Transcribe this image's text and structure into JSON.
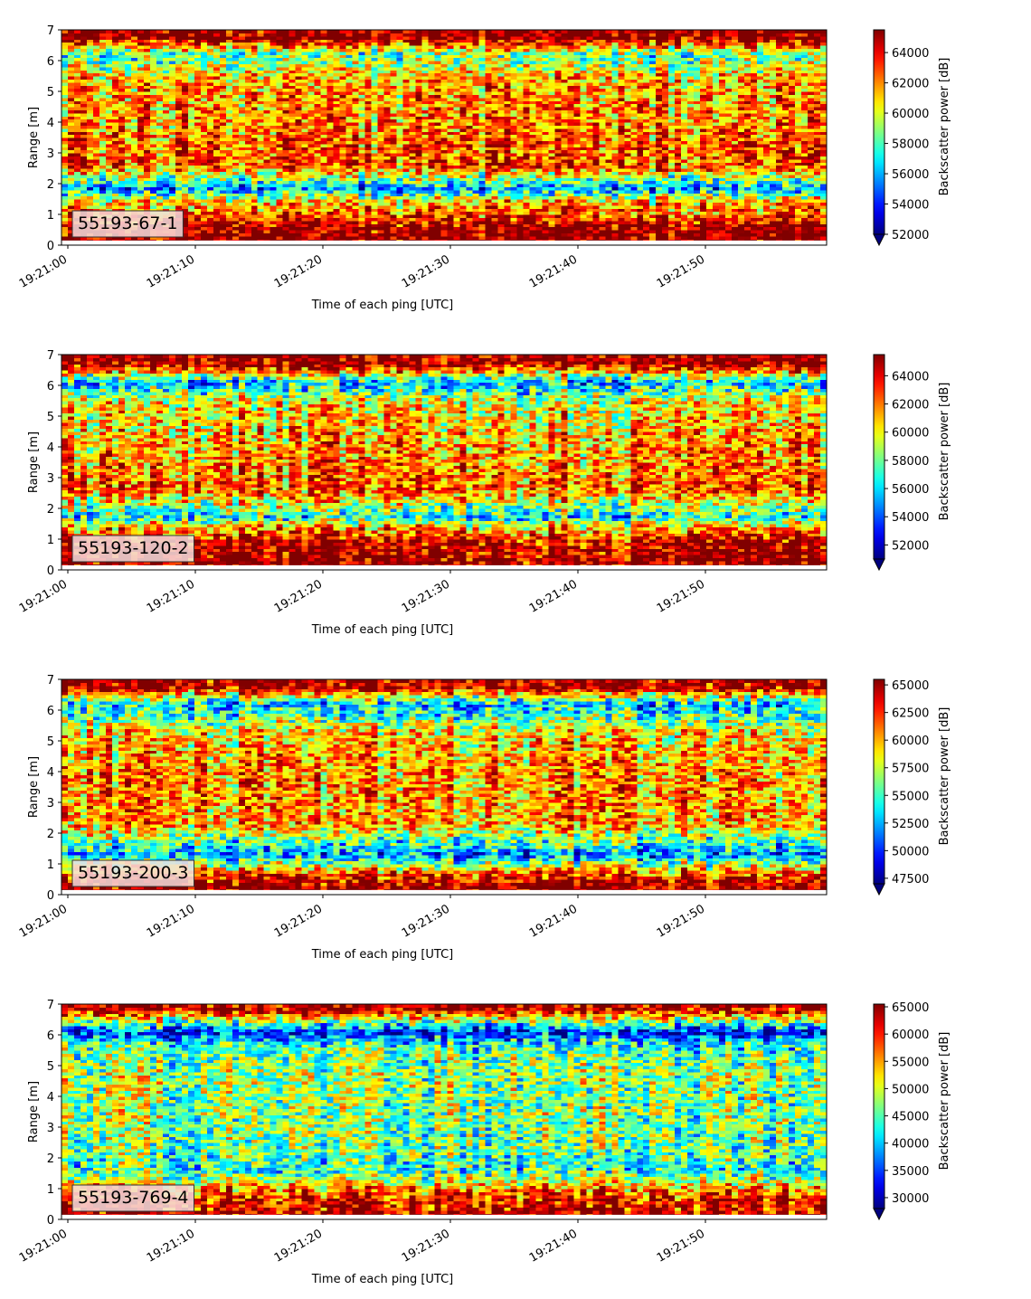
{
  "chart_data": [
    {
      "type": "heatmap",
      "panel_label": "55193-67-1",
      "xlabel": "Time of each ping [UTC]",
      "ylabel": "Range [m]",
      "ylim": [
        0,
        7
      ],
      "yticks": [
        "0",
        "1",
        "2",
        "3",
        "4",
        "5",
        "6",
        "7"
      ],
      "xticks": [
        "19:21:00",
        "19:21:10",
        "19:21:20",
        "19:21:30",
        "19:21:40",
        "19:21:50"
      ],
      "colorbar_label": "Backscatter power [dB]",
      "colormap": "jet",
      "colorbar_range": [
        52000,
        65500
      ],
      "colorbar_ticks": [
        "52000",
        "54000",
        "56000",
        "58000",
        "60000",
        "62000",
        "64000"
      ],
      "colorbar_extend": "min",
      "profile": [
        {
          "range": 0.25,
          "value": 65500
        },
        {
          "range": 0.6,
          "value": 65000
        },
        {
          "range": 1.05,
          "value": 62500
        },
        {
          "range": 1.45,
          "value": 61000
        },
        {
          "range": 1.85,
          "value": 55500
        },
        {
          "range": 2.6,
          "value": 63000
        },
        {
          "range": 4.0,
          "value": 62000
        },
        {
          "range": 5.4,
          "value": 61500
        },
        {
          "range": 6.2,
          "value": 58000
        },
        {
          "range": 6.75,
          "value": 65500
        }
      ]
    },
    {
      "type": "heatmap",
      "panel_label": "55193-120-2",
      "xlabel": "Time of each ping [UTC]",
      "ylabel": "Range [m]",
      "ylim": [
        0,
        7
      ],
      "yticks": [
        "0",
        "1",
        "2",
        "3",
        "4",
        "5",
        "6",
        "7"
      ],
      "xticks": [
        "19:21:00",
        "19:21:10",
        "19:21:20",
        "19:21:30",
        "19:21:40",
        "19:21:50"
      ],
      "colorbar_label": "Backscatter power [dB]",
      "colormap": "jet",
      "colorbar_range": [
        51000,
        65500
      ],
      "colorbar_ticks": [
        "52000",
        "54000",
        "56000",
        "58000",
        "60000",
        "62000",
        "64000"
      ],
      "colorbar_extend": "min",
      "profile": [
        {
          "range": 0.3,
          "value": 65500
        },
        {
          "range": 0.9,
          "value": 64500
        },
        {
          "range": 1.4,
          "value": 61000
        },
        {
          "range": 1.75,
          "value": 56500
        },
        {
          "range": 2.6,
          "value": 62500
        },
        {
          "range": 4.0,
          "value": 61500
        },
        {
          "range": 5.5,
          "value": 60000
        },
        {
          "range": 6.1,
          "value": 55500
        },
        {
          "range": 6.7,
          "value": 65500
        }
      ]
    },
    {
      "type": "heatmap",
      "panel_label": "55193-200-3",
      "xlabel": "Time of each ping [UTC]",
      "ylabel": "Range [m]",
      "ylim": [
        0,
        7
      ],
      "yticks": [
        "0",
        "1",
        "2",
        "3",
        "4",
        "5",
        "6",
        "7"
      ],
      "xticks": [
        "19:21:00",
        "19:21:10",
        "19:21:20",
        "19:21:30",
        "19:21:40",
        "19:21:50"
      ],
      "colorbar_label": "Backscatter power [dB]",
      "colormap": "jet",
      "colorbar_range": [
        47000,
        65500
      ],
      "colorbar_ticks": [
        "47500",
        "50000",
        "52500",
        "55000",
        "57500",
        "60000",
        "62500",
        "65000"
      ],
      "colorbar_extend": "min",
      "profile": [
        {
          "range": 0.3,
          "value": 65500
        },
        {
          "range": 0.75,
          "value": 61000
        },
        {
          "range": 1.3,
          "value": 51500
        },
        {
          "range": 2.3,
          "value": 60000
        },
        {
          "range": 3.8,
          "value": 60500
        },
        {
          "range": 5.3,
          "value": 59000
        },
        {
          "range": 6.2,
          "value": 52500
        },
        {
          "range": 6.75,
          "value": 64500
        }
      ]
    },
    {
      "type": "heatmap",
      "panel_label": "55193-769-4",
      "xlabel": "Time of each ping [UTC]",
      "ylabel": "Range [m]",
      "ylim": [
        0,
        7
      ],
      "yticks": [
        "0",
        "1",
        "2",
        "3",
        "4",
        "5",
        "6",
        "7"
      ],
      "xticks": [
        "19:21:00",
        "19:21:10",
        "19:21:20",
        "19:21:30",
        "19:21:40",
        "19:21:50"
      ],
      "colorbar_label": "Backscatter power [dB]",
      "colormap": "jet",
      "colorbar_range": [
        28000,
        65500
      ],
      "colorbar_ticks": [
        "30000",
        "35000",
        "40000",
        "45000",
        "50000",
        "55000",
        "60000",
        "65000"
      ],
      "colorbar_extend": "min",
      "profile": [
        {
          "range": 0.25,
          "value": 63000
        },
        {
          "range": 0.7,
          "value": 60500
        },
        {
          "range": 1.05,
          "value": 55000
        },
        {
          "range": 1.6,
          "value": 43500
        },
        {
          "range": 2.3,
          "value": 46000
        },
        {
          "range": 3.4,
          "value": 47000
        },
        {
          "range": 4.8,
          "value": 48000
        },
        {
          "range": 5.7,
          "value": 44000
        },
        {
          "range": 6.1,
          "value": 33000
        },
        {
          "range": 6.55,
          "value": 52000
        },
        {
          "range": 6.85,
          "value": 64000
        }
      ]
    }
  ]
}
